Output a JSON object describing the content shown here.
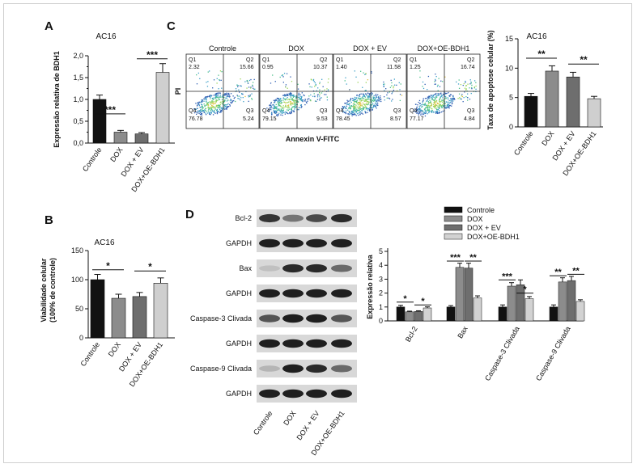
{
  "panels": {
    "A": "A",
    "B": "B",
    "C": "C",
    "D": "D"
  },
  "chart_data": [
    {
      "id": "A",
      "type": "bar",
      "title": "AC16",
      "ylabel": "Expressão relativa de BDH1",
      "categories": [
        "Controle",
        "DOX",
        "DOX + EV",
        "DOX+OE-BDH1"
      ],
      "values": [
        1.0,
        0.25,
        0.21,
        1.62
      ],
      "errors": [
        0.1,
        0.04,
        0.03,
        0.2
      ],
      "ylim": [
        0,
        2.0
      ],
      "yticks": [
        "0,0",
        "0,5",
        "1,0",
        "1,5",
        "2,0"
      ],
      "ytick_values": [
        0,
        0.5,
        1.0,
        1.5,
        2.0
      ],
      "yminor": [
        0.25,
        0.75,
        1.25,
        1.75
      ],
      "colors": [
        "#111111",
        "#8c8c8c",
        "#6e6e6e",
        "#cfcfcf"
      ],
      "significance": [
        {
          "from": 0,
          "to": 1,
          "label": "***",
          "y": 0.67
        },
        {
          "from": 2,
          "to": 3,
          "label": "***",
          "y": 1.93
        }
      ]
    },
    {
      "id": "B",
      "type": "bar",
      "title": "AC16",
      "ylabel": [
        "Viabilidade celular",
        "(100% de controle)"
      ],
      "categories": [
        "Controle",
        "DOX",
        "DOX + EV",
        "DOX+OE-BDH1"
      ],
      "values": [
        100,
        68,
        71,
        94
      ],
      "errors": [
        9,
        7,
        7,
        9
      ],
      "ylim": [
        0,
        150
      ],
      "yticks": [
        "0",
        "50",
        "100",
        "150"
      ],
      "ytick_values": [
        0,
        50,
        100,
        150
      ],
      "colors": [
        "#111111",
        "#8c8c8c",
        "#6e6e6e",
        "#cfcfcf"
      ],
      "significance": [
        {
          "from": 0,
          "to": 1,
          "label": "*",
          "y": 117
        },
        {
          "from": 2,
          "to": 3,
          "label": "*",
          "y": 115
        }
      ]
    },
    {
      "id": "C",
      "type": "scatter",
      "xlabel": "Annexin V-FITC",
      "ylabel": "PI",
      "plots": [
        {
          "title": "Controle",
          "q1": "Q1",
          "q1v": "2.32",
          "q2": "Q2",
          "q2v": "15.66",
          "q3": "Q3",
          "q3v": "5.24",
          "q4": "Q4",
          "q4v": "76.78"
        },
        {
          "title": "DOX",
          "q1": "Q1",
          "q1v": "0.95",
          "q2": "Q2",
          "q2v": "10.37",
          "q3": "Q3",
          "q3v": "9.53",
          "q4": "Q4",
          "q4v": "79.15"
        },
        {
          "title": "DOX + EV",
          "q1": "Q1",
          "q1v": "1.40",
          "q2": "Q2",
          "q2v": "11.58",
          "q3": "Q3",
          "q3v": "8.57",
          "q4": "Q4",
          "q4v": "78.45"
        },
        {
          "title": "DOX+OE-BDH1",
          "q1": "Q1",
          "q1v": "1.25",
          "q2": "Q2",
          "q2v": "16.74",
          "q3": "Q3",
          "q3v": "4.84",
          "q4": "Q4",
          "q4v": "77.17"
        }
      ]
    },
    {
      "id": "C2",
      "type": "bar",
      "title": "AC16",
      "ylabel": "Taxa de apoptose celular (%)",
      "categories": [
        "Controle",
        "DOX",
        "DOX + EV",
        "DOX+OE-BDH1"
      ],
      "values": [
        5.2,
        9.5,
        8.5,
        4.8
      ],
      "errors": [
        0.5,
        0.9,
        0.8,
        0.4
      ],
      "ylim": [
        0,
        15
      ],
      "yticks": [
        "0",
        "5",
        "10",
        "15"
      ],
      "ytick_values": [
        0,
        5,
        10,
        15
      ],
      "colors": [
        "#111111",
        "#8c8c8c",
        "#6e6e6e",
        "#cfcfcf"
      ],
      "significance": [
        {
          "from": 0,
          "to": 1,
          "label": "**",
          "y": 11.7
        },
        {
          "from": 2,
          "to": 3,
          "label": "**",
          "y": 10.7
        }
      ]
    },
    {
      "id": "D-blot",
      "type": "table",
      "rows": [
        "Bcl-2",
        "GAPDH",
        "Bax",
        "GAPDH",
        "Caspase-3 Clivada",
        "GAPDH",
        "Caspase-9 Clivada",
        "GAPDH"
      ],
      "lanes": [
        "Controle",
        "DOX",
        "DOX + EV",
        "DOX+OE-BDH1"
      ],
      "intensity": [
        [
          0.85,
          0.55,
          0.75,
          0.9
        ],
        [
          0.95,
          0.95,
          0.95,
          0.95
        ],
        [
          0.2,
          0.9,
          0.9,
          0.6
        ],
        [
          0.95,
          0.95,
          0.95,
          0.95
        ],
        [
          0.7,
          0.95,
          0.95,
          0.7
        ],
        [
          0.95,
          0.95,
          0.95,
          0.95
        ],
        [
          0.25,
          0.95,
          0.9,
          0.6
        ],
        [
          0.95,
          0.95,
          0.95,
          0.95
        ]
      ]
    },
    {
      "id": "D-bar",
      "type": "bar",
      "ylabel": "Expressão relativa",
      "categories": [
        "Bcl-2",
        "Bax",
        "Caspase-3 Clivada",
        "Caspase-9 Clivada"
      ],
      "series": [
        {
          "name": "Controle",
          "color": "#111111",
          "values": [
            1.0,
            1.0,
            1.0,
            1.0
          ],
          "errors": [
            0.12,
            0.1,
            0.15,
            0.15
          ]
        },
        {
          "name": "DOX",
          "color": "#8c8c8c",
          "values": [
            0.65,
            3.85,
            2.5,
            2.8
          ],
          "errors": [
            0.05,
            0.3,
            0.25,
            0.3
          ]
        },
        {
          "name": "DOX + EV",
          "color": "#6e6e6e",
          "values": [
            0.68,
            3.8,
            2.6,
            2.9
          ],
          "errors": [
            0.05,
            0.35,
            0.35,
            0.3
          ]
        },
        {
          "name": "DOX+OE-BDH1",
          "color": "#d2d2d2",
          "values": [
            0.93,
            1.65,
            1.6,
            1.4
          ],
          "errors": [
            0.08,
            0.15,
            0.15,
            0.12
          ]
        }
      ],
      "ylim": [
        0,
        5
      ],
      "yticks": [
        "0",
        "1",
        "2",
        "3",
        "4",
        "5"
      ],
      "ytick_values": [
        0,
        1,
        2,
        3,
        4,
        5
      ],
      "significance": [
        {
          "group": 0,
          "from": 0,
          "to": 1,
          "label": "*",
          "y": 1.35
        },
        {
          "group": 0,
          "from": 2,
          "to": 3,
          "label": "*",
          "y": 1.15
        },
        {
          "group": 1,
          "from": 0,
          "to": 1,
          "label": "***",
          "y": 4.3
        },
        {
          "group": 1,
          "from": 2,
          "to": 3,
          "label": "**",
          "y": 4.3
        },
        {
          "group": 2,
          "from": 0,
          "to": 1,
          "label": "***",
          "y": 2.95
        },
        {
          "group": 2,
          "from": 2,
          "to": 3,
          "label": "*",
          "y": 2.0
        },
        {
          "group": 3,
          "from": 0,
          "to": 1,
          "label": "**",
          "y": 3.25
        },
        {
          "group": 3,
          "from": 2,
          "to": 3,
          "label": "**",
          "y": 3.35
        }
      ]
    }
  ]
}
